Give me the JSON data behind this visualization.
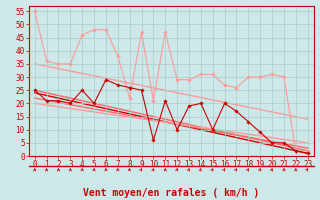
{
  "xlabel": "Vent moyen/en rafales ( km/h )",
  "xlim": [
    -0.5,
    23.5
  ],
  "ylim": [
    0,
    57
  ],
  "yticks": [
    0,
    5,
    10,
    15,
    20,
    25,
    30,
    35,
    40,
    45,
    50,
    55
  ],
  "xticks": [
    0,
    1,
    2,
    3,
    4,
    5,
    6,
    7,
    8,
    9,
    10,
    11,
    12,
    13,
    14,
    15,
    16,
    17,
    18,
    19,
    20,
    21,
    22,
    23
  ],
  "bg_color": "#cce8e8",
  "grid_color": "#aacccc",
  "series": [
    {
      "x": [
        0,
        1,
        2,
        3,
        4,
        5,
        6,
        7,
        8,
        9,
        10,
        11,
        12,
        13,
        14,
        15,
        16,
        17,
        18,
        19,
        20,
        21,
        22,
        23
      ],
      "y": [
        55,
        36,
        35,
        35,
        46,
        48,
        48,
        38,
        22,
        47,
        21,
        47,
        29,
        29,
        31,
        31,
        27,
        26,
        30,
        30,
        31,
        30,
        2,
        2
      ],
      "color": "#ff9999",
      "lw": 0.8,
      "marker": "D",
      "ms": 1.8,
      "zorder": 2
    },
    {
      "x": [
        0,
        23
      ],
      "y": [
        35,
        14
      ],
      "color": "#ff9999",
      "lw": 1.0,
      "marker": null,
      "ms": 0,
      "zorder": 1
    },
    {
      "x": [
        0,
        1,
        2,
        3,
        4,
        5,
        6,
        7,
        8,
        9,
        10,
        11,
        12,
        13,
        14,
        15,
        16,
        17,
        18,
        19,
        20,
        21,
        22,
        23
      ],
      "y": [
        25,
        21,
        21,
        20,
        25,
        20,
        29,
        27,
        26,
        25,
        6,
        21,
        10,
        19,
        20,
        10,
        20,
        17,
        13,
        9,
        5,
        5,
        2,
        1
      ],
      "color": "#cc0000",
      "lw": 0.8,
      "marker": "D",
      "ms": 1.8,
      "zorder": 3
    },
    {
      "x": [
        0,
        23
      ],
      "y": [
        24,
        1
      ],
      "color": "#cc0000",
      "lw": 1.0,
      "marker": null,
      "ms": 0,
      "zorder": 1
    },
    {
      "x": [
        0,
        23
      ],
      "y": [
        25,
        2
      ],
      "color": "#ff6666",
      "lw": 1.0,
      "marker": null,
      "ms": 0,
      "zorder": 1
    },
    {
      "x": [
        0,
        23
      ],
      "y": [
        22,
        3
      ],
      "color": "#ff6666",
      "lw": 1.0,
      "marker": null,
      "ms": 0,
      "zorder": 1
    },
    {
      "x": [
        0,
        23
      ],
      "y": [
        20,
        5
      ],
      "color": "#ff9999",
      "lw": 1.0,
      "marker": null,
      "ms": 0,
      "zorder": 1
    }
  ],
  "wind_arrow_angles": [
    90,
    90,
    90,
    90,
    90,
    90,
    90,
    90,
    75,
    55,
    75,
    90,
    75,
    70,
    60,
    60,
    55,
    55,
    60,
    75,
    75,
    90,
    90,
    45
  ],
  "axis_color": "#cc0000",
  "tick_color": "#cc0000",
  "label_color": "#cc0000",
  "xlabel_fontsize": 7,
  "tick_fontsize": 5.5
}
